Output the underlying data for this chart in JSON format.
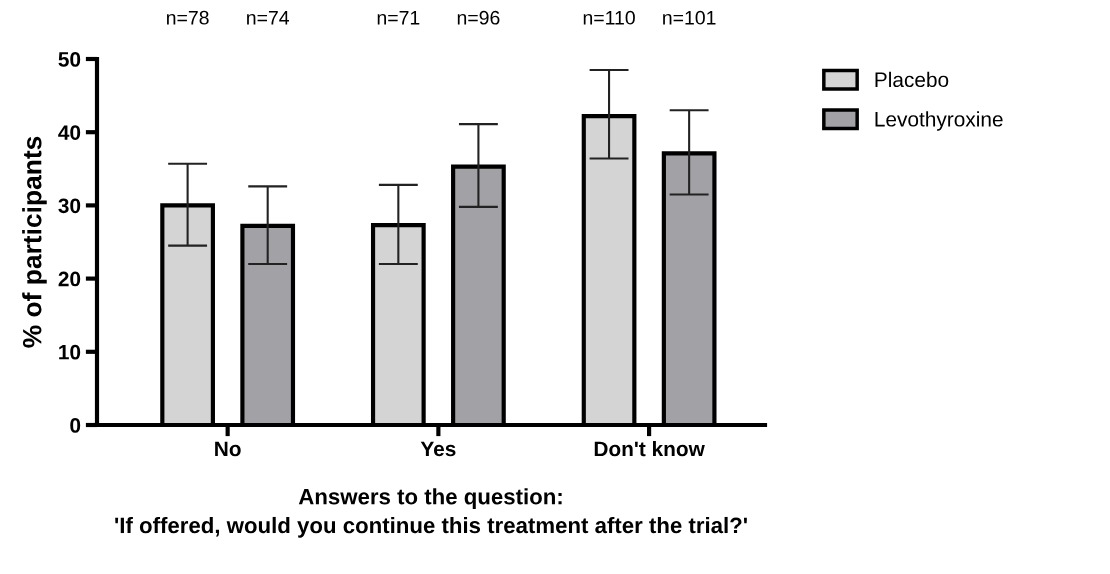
{
  "chart_data": {
    "type": "bar",
    "categories": [
      "No",
      "Yes",
      "Don't know"
    ],
    "series": [
      {
        "name": "Placebo",
        "color": "#d4d4d4",
        "values": [
          30.0,
          27.3,
          42.2
        ],
        "errors": [
          [
            24.5,
            35.7
          ],
          [
            22.0,
            32.8
          ],
          [
            36.4,
            48.5
          ]
        ]
      },
      {
        "name": "Levothyroxine",
        "color": "#a2a1a6",
        "values": [
          27.2,
          35.3,
          37.1
        ],
        "errors": [
          [
            22.0,
            32.6
          ],
          [
            29.8,
            41.1
          ],
          [
            31.5,
            43.0
          ]
        ]
      }
    ],
    "ylabel": "% of participants",
    "xlabel": "Answers to the question:\n'If offered, would you continue this treatment after the trial?'",
    "ylim": [
      0,
      50
    ],
    "yticks": [
      0,
      10,
      20,
      30,
      40,
      50
    ],
    "annotations": [
      "n=78",
      "n=74",
      "n=71",
      "n=96",
      "n=110",
      "n=101"
    ],
    "legend": "top right",
    "grid": false
  }
}
